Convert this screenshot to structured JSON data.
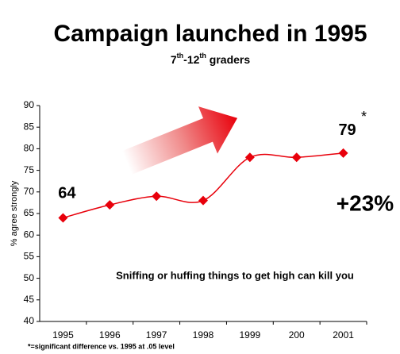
{
  "chart_data": {
    "type": "line",
    "title": "Campaign launched in 1995",
    "subtitle_parts": [
      "7",
      "th",
      "-12",
      "th",
      " graders"
    ],
    "y_label": "% agree strongly",
    "categories": [
      "1995",
      "1996",
      "1997",
      "1998",
      "1999",
      "200",
      "2001"
    ],
    "series": [
      {
        "color": "#e8000b",
        "values": [
          64,
          67,
          69,
          68,
          78,
          78,
          79
        ]
      }
    ],
    "ylim": [
      40,
      90
    ],
    "yticks": [
      40,
      45,
      50,
      55,
      60,
      65,
      70,
      75,
      80,
      85,
      90
    ],
    "annotations": {
      "asterisk": "*",
      "change": "+23%",
      "statement": "Sniffing or huffing things to get high can kill you"
    },
    "footnote": "*=significant difference vs. 1995 at .05 level"
  }
}
